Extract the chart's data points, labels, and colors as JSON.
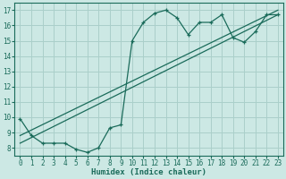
{
  "xlabel": "Humidex (Indice chaleur)",
  "bg_color": "#cce8e4",
  "grid_color": "#aacfca",
  "line_color": "#1a6b5a",
  "xlim": [
    -0.5,
    23.5
  ],
  "ylim": [
    7.5,
    17.5
  ],
  "yticks": [
    8,
    9,
    10,
    11,
    12,
    13,
    14,
    15,
    16,
    17
  ],
  "xticks": [
    0,
    1,
    2,
    3,
    4,
    5,
    6,
    7,
    8,
    9,
    10,
    11,
    12,
    13,
    14,
    15,
    16,
    17,
    18,
    19,
    20,
    21,
    22,
    23
  ],
  "curve1_x": [
    0,
    1,
    2,
    3,
    4,
    5,
    6,
    7,
    8,
    9,
    10,
    11,
    12,
    13,
    14,
    15,
    16,
    17,
    18,
    19,
    20,
    21,
    22,
    23
  ],
  "curve1_y": [
    9.9,
    8.8,
    8.3,
    8.3,
    8.3,
    7.9,
    7.7,
    8.0,
    9.3,
    9.5,
    15.0,
    16.2,
    16.8,
    17.0,
    16.5,
    15.4,
    16.2,
    16.2,
    16.7,
    15.2,
    14.9,
    15.6,
    16.7,
    16.7
  ],
  "line1_x": [
    0,
    23
  ],
  "line1_y": [
    8.8,
    17.0
  ],
  "line2_x": [
    0,
    23
  ],
  "line2_y": [
    8.3,
    16.7
  ]
}
